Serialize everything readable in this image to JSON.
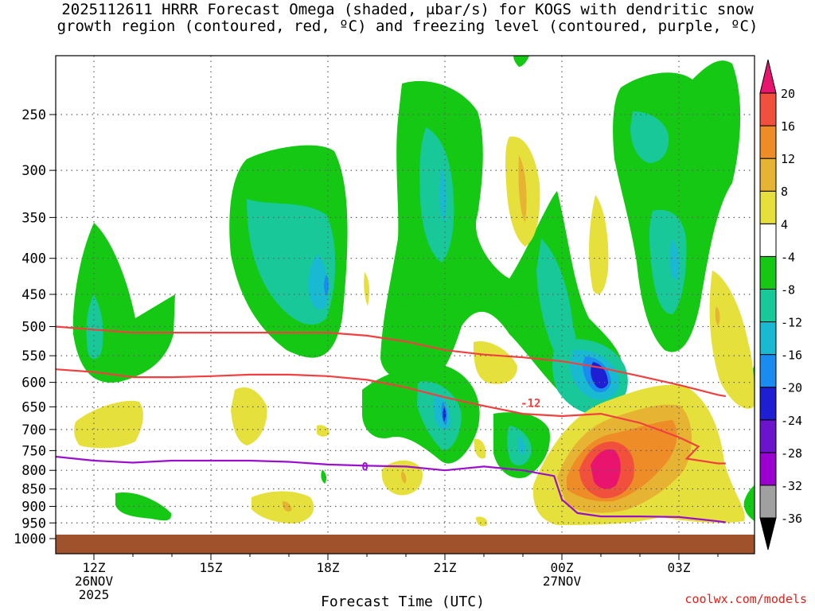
{
  "title": {
    "line1": "2025112611 HRRR Forecast Omega (shaded, μbar/s) for KOGS with dendritic snow",
    "line2": "growth region (contoured, red, ºC) and freezing level (contoured, purple, ºC)"
  },
  "credit": "coolwx.com/models",
  "chart_data": {
    "type": "heatmap",
    "xlabel": "Forecast Time (UTC)",
    "ylabel": "",
    "y_scale": "log-pressure",
    "y_inverted": true,
    "ylim": [
      1000,
      200
    ],
    "xlim_hours_after_12Z": [
      -1.0,
      16.2
    ],
    "grid": true,
    "y_ticks": [
      250,
      300,
      350,
      400,
      450,
      500,
      550,
      600,
      650,
      700,
      750,
      800,
      850,
      900,
      950,
      1000
    ],
    "x_ticks": [
      {
        "hours": 0,
        "label": "12Z",
        "sub1": "26NOV",
        "sub2": "2025"
      },
      {
        "hours": 3,
        "label": "15Z",
        "sub1": "",
        "sub2": ""
      },
      {
        "hours": 6,
        "label": "18Z",
        "sub1": "",
        "sub2": ""
      },
      {
        "hours": 9,
        "label": "21Z",
        "sub1": "",
        "sub2": ""
      },
      {
        "hours": 12,
        "label": "00Z",
        "sub1": "27NOV",
        "sub2": ""
      },
      {
        "hours": 15,
        "label": "03Z",
        "sub1": "",
        "sub2": ""
      }
    ],
    "colorbar": {
      "levels": [
        -36,
        -32,
        -28,
        -24,
        -20,
        -16,
        -12,
        -8,
        -4,
        4,
        8,
        12,
        16,
        20
      ],
      "colors": [
        "#a0a0a0",
        "#9a00d0",
        "#6a14cc",
        "#1e1ed2",
        "#1a8cf0",
        "#1ab9d2",
        "#18c898",
        "#14c814",
        "#ffffff",
        "#e6e03c",
        "#e6b432",
        "#ee8c28",
        "#f0503c",
        "#e8146e"
      ]
    },
    "contour_lines": [
      {
        "field": "temperature",
        "level_c": -12,
        "label": "-12",
        "color": "#f04040",
        "points": [
          [
            -1.0,
            500
          ],
          [
            0,
            505
          ],
          [
            1,
            510
          ],
          [
            2,
            510
          ],
          [
            3,
            510
          ],
          [
            4,
            510
          ],
          [
            5,
            510
          ],
          [
            6,
            510
          ],
          [
            7,
            515
          ],
          [
            8,
            525
          ],
          [
            9,
            540
          ],
          [
            10,
            548
          ],
          [
            11,
            553
          ],
          [
            12,
            560
          ],
          [
            13,
            572
          ],
          [
            14,
            588
          ],
          [
            15,
            605
          ],
          [
            16,
            625
          ],
          [
            16.2,
            628
          ]
        ]
      },
      {
        "field": "temperature",
        "level_c": -18,
        "label": "",
        "color": "#f04040",
        "points": [
          [
            -1.0,
            575
          ],
          [
            0,
            580
          ],
          [
            1,
            590
          ],
          [
            2,
            590
          ],
          [
            3,
            588
          ],
          [
            4,
            585
          ],
          [
            5,
            585
          ],
          [
            6,
            588
          ],
          [
            7,
            595
          ],
          [
            8,
            610
          ],
          [
            9,
            630
          ],
          [
            10,
            648
          ],
          [
            11,
            665
          ],
          [
            12,
            670
          ],
          [
            13,
            665
          ],
          [
            14,
            685
          ],
          [
            15,
            718
          ],
          [
            15.5,
            740
          ],
          [
            15.2,
            770
          ],
          [
            16,
            782
          ],
          [
            16.2,
            782
          ]
        ]
      },
      {
        "field": "temperature",
        "level_c": 0,
        "label": "0",
        "color": "#9a10cc",
        "points": [
          [
            -1.0,
            765
          ],
          [
            0,
            775
          ],
          [
            1,
            780
          ],
          [
            2,
            775
          ],
          [
            3,
            775
          ],
          [
            4,
            775
          ],
          [
            5,
            778
          ],
          [
            6,
            785
          ],
          [
            7,
            788
          ],
          [
            8,
            790
          ],
          [
            9,
            800
          ],
          [
            10,
            790
          ],
          [
            11,
            800
          ],
          [
            11.8,
            815
          ],
          [
            12,
            880
          ],
          [
            12.4,
            920
          ],
          [
            13,
            930
          ],
          [
            14,
            930
          ],
          [
            15,
            932
          ],
          [
            16,
            945
          ],
          [
            16.2,
            948
          ]
        ]
      }
    ]
  }
}
